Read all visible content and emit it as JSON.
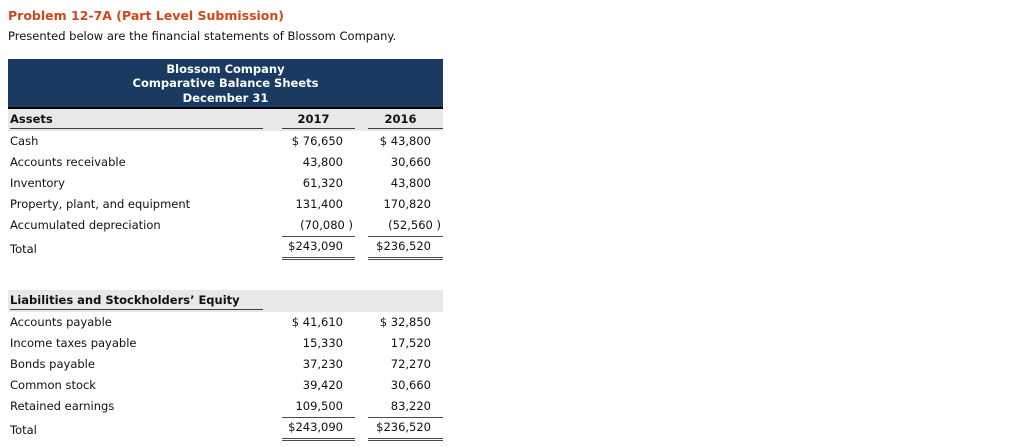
{
  "page": {
    "title": "Problem 12-7A (Part Level Submission)",
    "intro": "Presented below are the financial statements of Blossom Company."
  },
  "colors": {
    "title_accent": "#d14719",
    "table_header_bg": "#1a3a61",
    "section_band_bg": "#e8e8e8"
  },
  "balance_sheet": {
    "header_lines": [
      "Blossom Company",
      "Comparative Balance Sheets",
      "December 31"
    ],
    "columns": [
      "2017",
      "2016"
    ],
    "assets": {
      "section_label": "Assets",
      "rows": [
        {
          "label": "Cash",
          "v2017": "$ 76,650",
          "v2016": "$ 43,800"
        },
        {
          "label": "Accounts receivable",
          "v2017": "43,800",
          "v2016": "30,660"
        },
        {
          "label": "Inventory",
          "v2017": "61,320",
          "v2016": "43,800"
        },
        {
          "label": "Property, plant, and equipment",
          "v2017": "131,400",
          "v2016": "170,820"
        },
        {
          "label": "Accumulated depreciation",
          "v2017": "(70,080 )",
          "v2016": "(52,560 )"
        },
        {
          "label": "Total",
          "v2017": "$243,090",
          "v2016": "$236,520"
        }
      ]
    },
    "liabilities": {
      "section_label": "Liabilities and Stockholders’ Equity",
      "rows": [
        {
          "label": "Accounts payable",
          "v2017": "$ 41,610",
          "v2016": "$ 32,850"
        },
        {
          "label": "Income taxes payable",
          "v2017": "15,330",
          "v2016": "17,520"
        },
        {
          "label": "Bonds payable",
          "v2017": "37,230",
          "v2016": "72,270"
        },
        {
          "label": "Common stock",
          "v2017": "39,420",
          "v2016": "30,660"
        },
        {
          "label": "Retained earnings",
          "v2017": "109,500",
          "v2016": "83,220"
        },
        {
          "label": "Total",
          "v2017": "$243,090",
          "v2016": "$236,520"
        }
      ]
    }
  }
}
